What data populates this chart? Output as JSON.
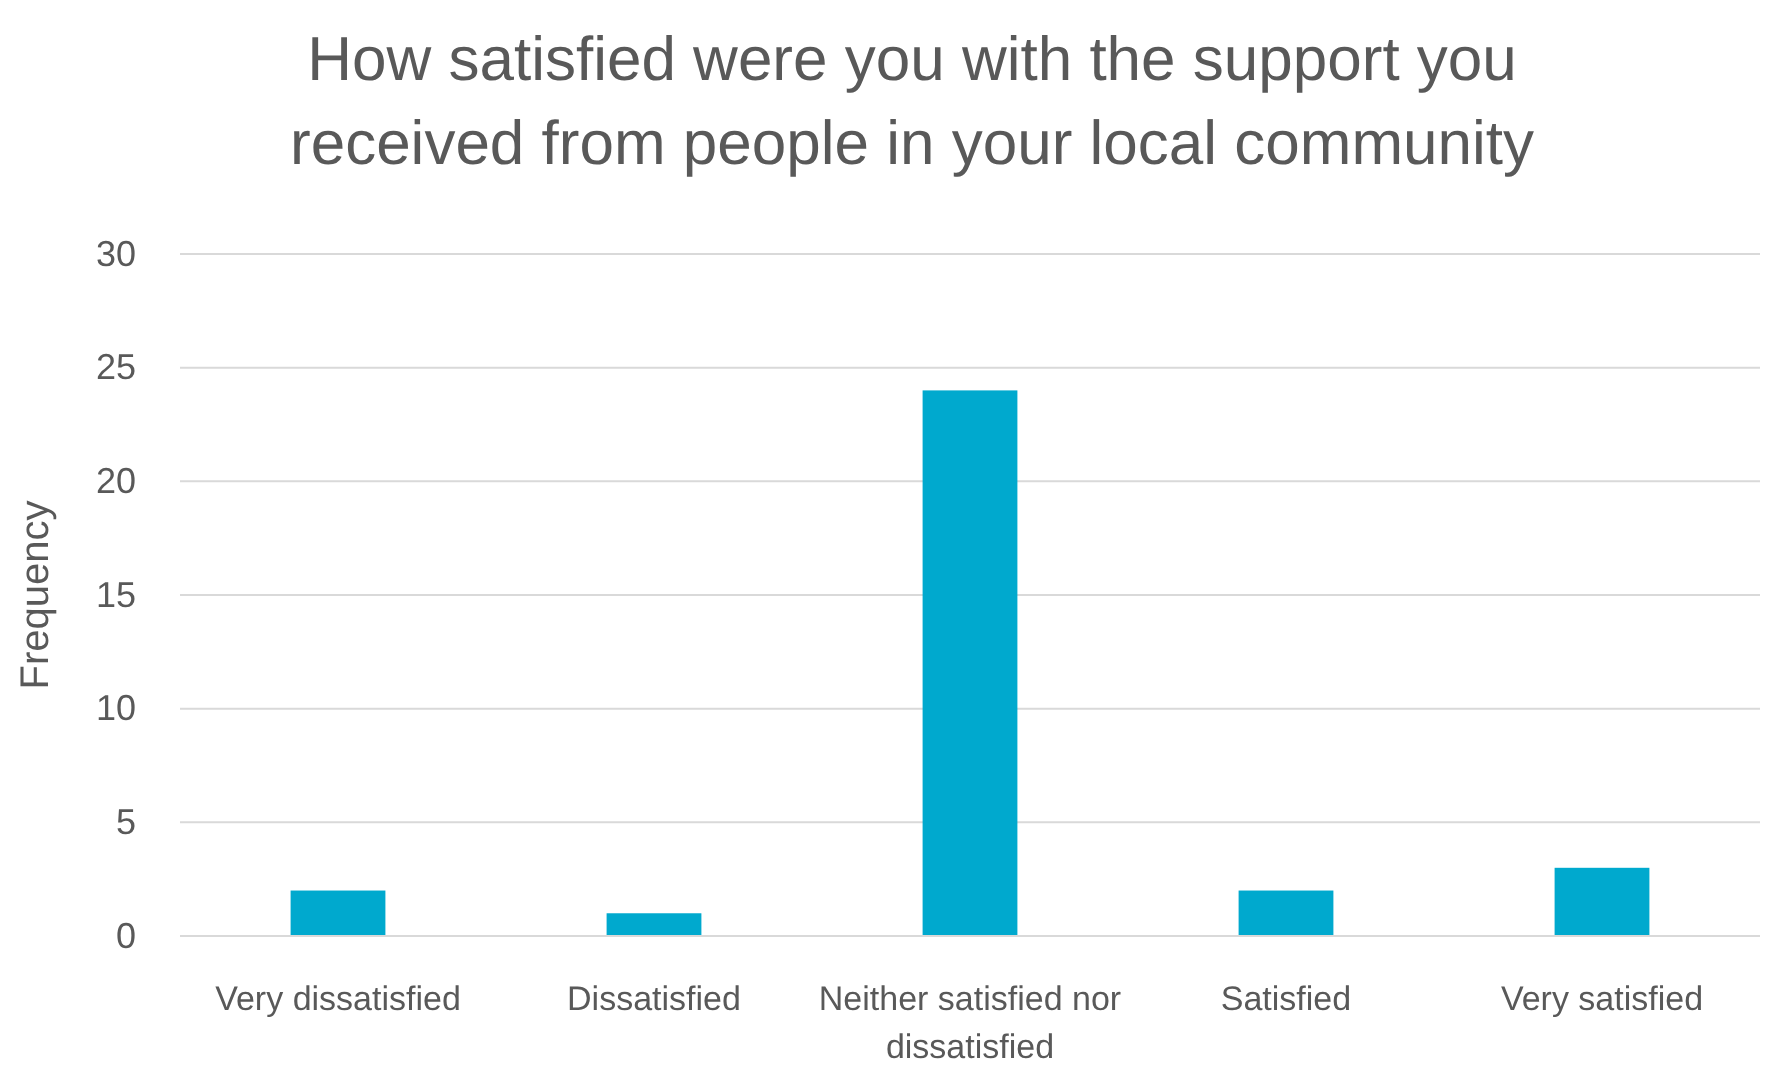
{
  "chart_data": {
    "type": "bar",
    "title": "How satisfied were you with the support you received from people in your local community",
    "ylabel": "Frequency",
    "categories": [
      "Very dissatisfied",
      "Dissatisfied",
      "Neither satisfied nor dissatisfied",
      "Satisfied",
      "Very satisfied"
    ],
    "values": [
      2,
      1,
      24,
      2,
      3
    ],
    "color": "#00a9ce",
    "ylim": [
      0,
      30
    ],
    "yticks": [
      0,
      5,
      10,
      15,
      20,
      25,
      30
    ],
    "grid": "y"
  }
}
